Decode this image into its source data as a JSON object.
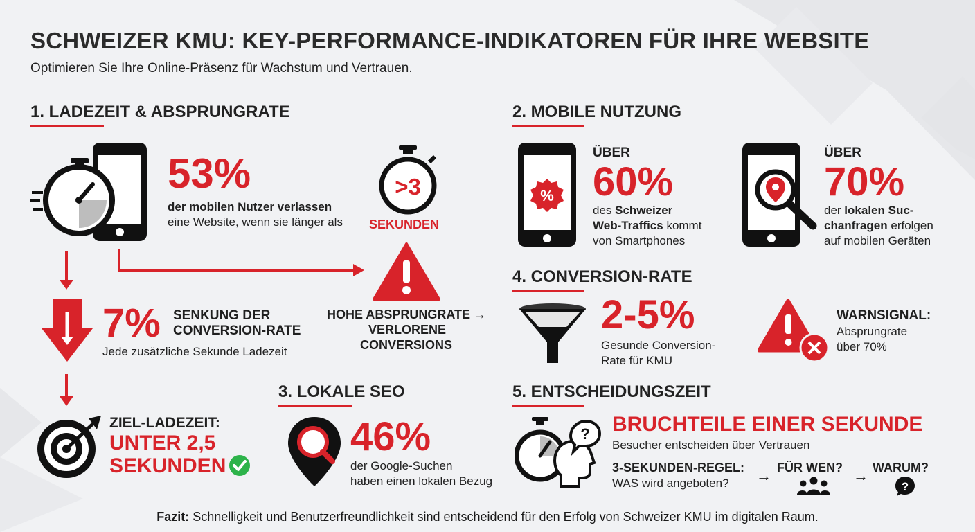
{
  "header": {
    "title": "SCHWEIZER KMU: KEY-PERFORMANCE-INDIKATOREN FÜR IHRE WEBSITE",
    "subtitle": "Optimieren Sie Ihre Online-Präsenz für Wachstum und Vertrauen."
  },
  "colors": {
    "accent": "#d8232a",
    "dark": "#1a1a1a",
    "background": "#f1f2f4",
    "success": "#2db34a"
  },
  "section1": {
    "heading": "1. LADEZEIT & ABSPRUNGRATE",
    "stat": "53%",
    "desc_bold": "der mobilen Nutzer verlassen",
    "desc_line2": "eine Website, wenn sie länger als",
    "timer_label": ">3",
    "seconds": "SEKUNDEN",
    "warning_line1": "HOHE ABSPRUNGRATE →",
    "warning_line2": "VERLORENE",
    "warning_line3": "CONVERSIONS",
    "drop_stat": "7%",
    "drop_title_line1": "SENKUNG DER",
    "drop_title_line2": "CONVERSION-RATE",
    "drop_desc": "Jede zusätzliche Sekunde Ladezeit",
    "target_label": "ZIEL-LADEZEIT:",
    "target_value_line1": "UNTER 2,5",
    "target_value_line2": "SEKUNDEN"
  },
  "section2": {
    "heading": "2. MOBILE NUTZUNG",
    "item1": {
      "prefix": "ÜBER",
      "stat": "60%",
      "line1_pre": "des ",
      "line1_bold": "Schweizer",
      "line2_bold": "Web-Traffics",
      "line2_rest": " kommt",
      "line3": "von Smartphones",
      "badge": "%"
    },
    "item2": {
      "prefix": "ÜBER",
      "stat": "70%",
      "line1_pre": "der ",
      "line1_bold": "lokalen Suc-",
      "line2_bold": "chanfragen",
      "line2_rest": " erfolgen",
      "line3": "auf mobilen Geräten"
    }
  },
  "section3": {
    "heading": "3. LOKALE SEO",
    "stat": "46%",
    "line1": "der Google-Suchen",
    "line2": "haben einen lokalen Bezug"
  },
  "section4": {
    "heading": "4. CONVERSION-RATE",
    "stat": "2-5%",
    "line1": "Gesunde Conversion-",
    "line2": "Rate für KMU",
    "warn_title": "WARNSIGNAL:",
    "warn_line1": "Absprungrate",
    "warn_line2": "über 70%"
  },
  "section5": {
    "heading": "5. ENTSCHEIDUNGSZEIT",
    "headline": "BRUCHTEILE EINER SEKUNDE",
    "sub": "Besucher entscheiden über Vertrauen",
    "rule_label": "3-SEKUNDEN-REGEL:",
    "rule_q1": "WAS wird angeboten?",
    "arrow": "→",
    "q2": "FÜR WEN?",
    "q3": "WARUM?",
    "question_mark": "?"
  },
  "footer": {
    "bold": "Fazit:",
    "text": " Schnelligkeit und Benutzerfreundlichkeit sind entscheidend für den Erfolg von Schweizer KMU im digitalen Raum."
  }
}
